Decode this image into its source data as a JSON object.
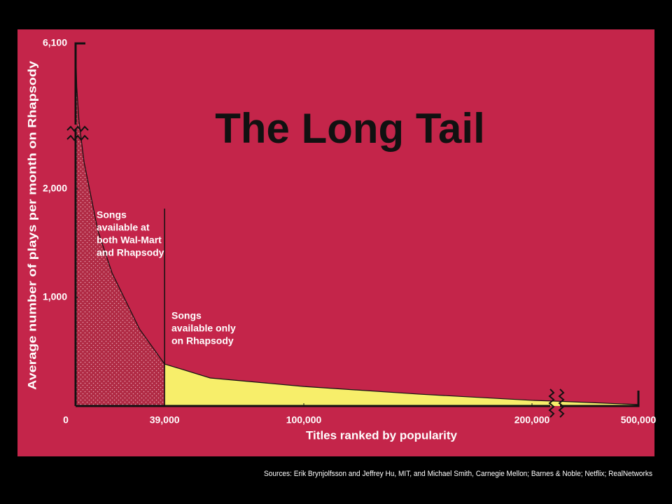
{
  "chart_data": {
    "type": "area",
    "title": "The Long Tail",
    "x_label": "Titles ranked by popularity",
    "y_label": "Average number of plays per month on Rhapsody",
    "source": "Sources: Erik Brynjolfsson and Jeffrey Hu, MIT, and Michael Smith, Carnegie Mellon; Barnes & Noble; Netflix; RealNetworks",
    "xlim": [
      0,
      500000
    ],
    "ylim": [
      0,
      6100
    ],
    "xbreak": 210000,
    "ybreak": 2500,
    "xticks": [
      0,
      {
        "value": 39000,
        "label": "39,000"
      },
      {
        "value": 100000,
        "label": "100,000"
      },
      {
        "value": 200000,
        "label": "200,000"
      },
      {
        "value": 500000,
        "label": "500,000"
      }
    ],
    "yticks": [
      {
        "value": 1000,
        "label": "1,000"
      },
      {
        "value": 2000,
        "label": "2,000"
      },
      {
        "value": 6100,
        "label": "6,100"
      }
    ],
    "series": [
      {
        "color": "#b02a44",
        "x": [
          0,
          500,
          1500,
          3700,
          9800,
          16000,
          22000,
          28000,
          39000
        ],
        "values": [
          6100,
          4200,
          2700,
          2250,
          1613,
          1226,
          968,
          710,
          387
        ]
      },
      {
        "color": "#f7ee6a",
        "x": [
          39000,
          59000,
          100000,
          150000,
          200000,
          210000,
          500000
        ],
        "values": [
          387,
          258,
          180,
          110,
          52,
          45,
          13
        ]
      }
    ],
    "annotations": [
      {
        "lines": [
          "Songs",
          "available at",
          "both Wal-Mart",
          "and Rhapsody"
        ]
      },
      {
        "lines": [
          "Songs",
          "available only",
          "on Rhapsody"
        ]
      }
    ]
  }
}
